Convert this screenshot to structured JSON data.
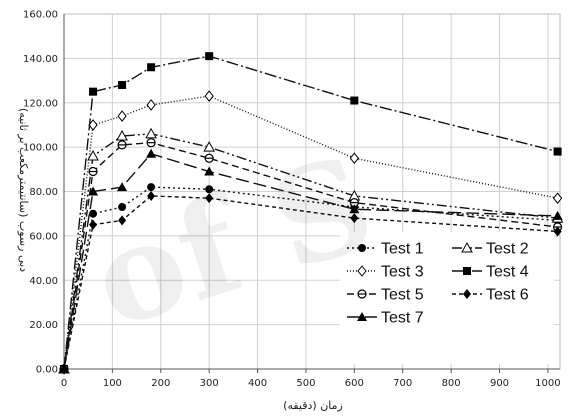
{
  "chart_data": {
    "type": "line",
    "xlabel": "زمان (دقیقه)",
    "ylabel": "دبی رسوب (سانتیمترمکعب بر ثانیه)",
    "xlim": [
      0,
      1025
    ],
    "ylim": [
      0,
      160
    ],
    "xticks": [
      0,
      100,
      200,
      300,
      400,
      500,
      600,
      700,
      800,
      900,
      1000
    ],
    "yticks": [
      0,
      20,
      40,
      60,
      80,
      100,
      120,
      140,
      160
    ],
    "ytick_labels": [
      "0.00",
      "20.00",
      "40.00",
      "60.00",
      "80.00",
      "100.00",
      "120.00",
      "140.00",
      "160.00"
    ],
    "grid": true,
    "legend_position": "bottom-right",
    "series": [
      {
        "name": "Test 1",
        "marker": "circle",
        "dash": "2,3",
        "x": [
          0,
          60,
          120,
          180,
          300,
          600,
          1020
        ],
        "y": [
          0,
          70,
          73,
          82,
          81,
          73,
          67
        ]
      },
      {
        "name": "Test 2",
        "marker": "triangle-open",
        "dash": "10,3,2,3,2,3",
        "x": [
          0,
          60,
          120,
          180,
          300,
          600,
          1020
        ],
        "y": [
          0,
          96,
          105,
          106,
          100,
          78,
          68
        ]
      },
      {
        "name": "Test 3",
        "marker": "diamond-open",
        "dash": "1,2",
        "x": [
          0,
          60,
          120,
          180,
          300,
          600,
          1020
        ],
        "y": [
          0,
          110,
          114,
          119,
          123,
          95,
          77
        ]
      },
      {
        "name": "Test 4",
        "marker": "square",
        "dash": "12,3,2,3",
        "x": [
          0,
          60,
          120,
          180,
          300,
          600,
          1020
        ],
        "y": [
          0,
          125,
          128,
          136,
          141,
          121,
          98
        ]
      },
      {
        "name": "Test 5",
        "marker": "circle-minus",
        "dash": "7,4",
        "x": [
          0,
          60,
          120,
          180,
          300,
          600,
          1020
        ],
        "y": [
          0,
          89,
          101,
          102,
          95,
          75,
          64
        ]
      },
      {
        "name": "Test 6",
        "marker": "diamond",
        "dash": "4,3",
        "x": [
          0,
          60,
          120,
          180,
          300,
          600,
          1020
        ],
        "y": [
          0,
          65,
          67,
          78,
          77,
          68,
          62
        ]
      },
      {
        "name": "Test 7",
        "marker": "triangle",
        "dash": "13,5",
        "x": [
          0,
          60,
          120,
          180,
          300,
          600,
          1020
        ],
        "y": [
          0,
          80,
          82,
          97,
          89,
          72,
          69
        ]
      }
    ]
  }
}
